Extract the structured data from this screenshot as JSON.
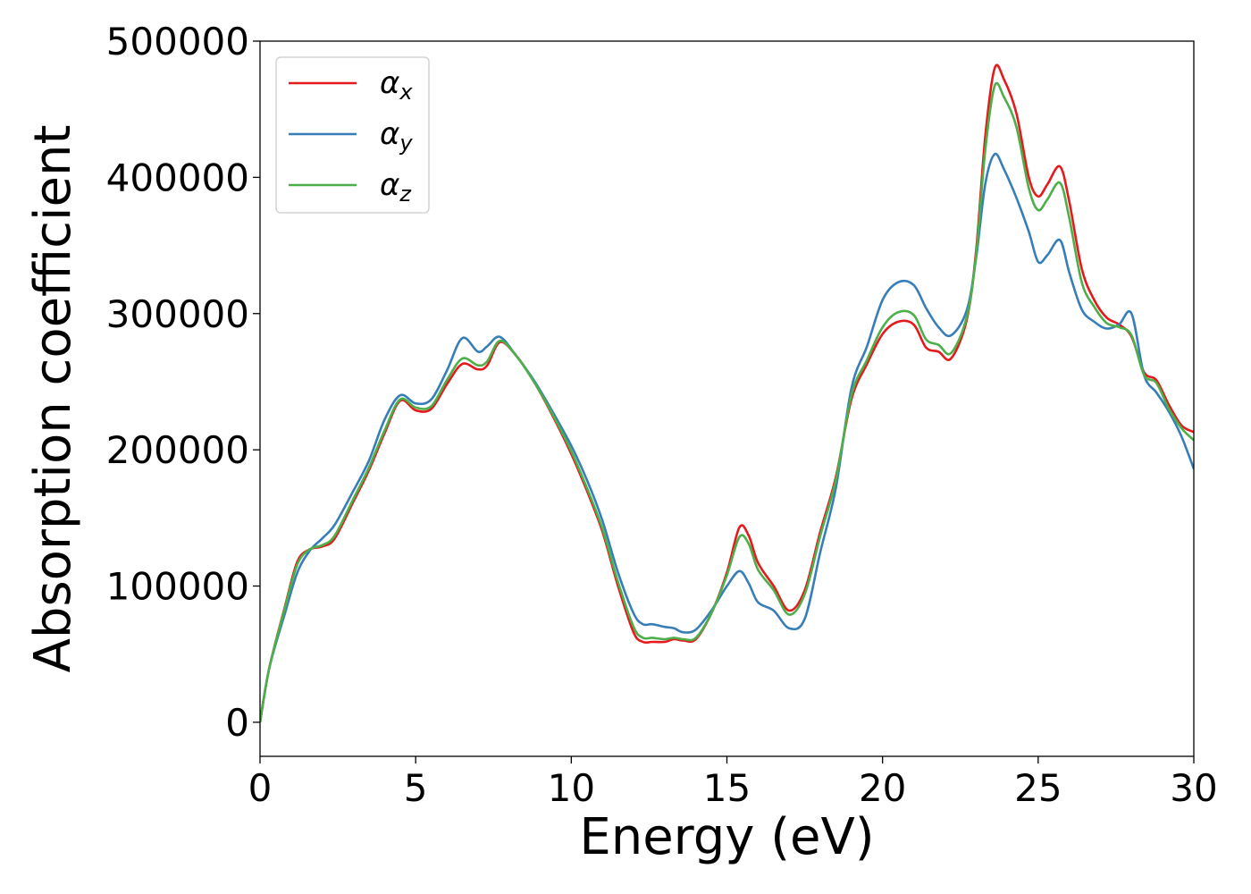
{
  "chart_data": {
    "type": "line",
    "title": "",
    "xlabel": "Energy (eV)",
    "ylabel": "Absorption coefficient",
    "xlim": [
      0,
      30
    ],
    "ylim": [
      -25000,
      500000
    ],
    "xticks": [
      "0",
      "5",
      "10",
      "15",
      "20",
      "25",
      "30"
    ],
    "yticks": [
      "0",
      "100000",
      "200000",
      "300000",
      "400000",
      "500000"
    ],
    "grid": false,
    "legend_position": "top-left",
    "series": [
      {
        "name": "α",
        "sub": "x",
        "color": "#e41a1c",
        "x": [
          0,
          0.3,
          0.8,
          1.2,
          1.6,
          2.0,
          2.4,
          3.0,
          3.5,
          4.0,
          4.5,
          5.0,
          5.5,
          6.0,
          6.5,
          7.0,
          7.3,
          7.7,
          8.2,
          8.8,
          9.4,
          10.0,
          10.5,
          11.0,
          11.5,
          12.0,
          12.3,
          12.6,
          13.0,
          13.3,
          13.6,
          14.0,
          14.5,
          15.0,
          15.4,
          15.7,
          16.0,
          16.5,
          17.0,
          17.5,
          18.0,
          18.5,
          19.0,
          19.5,
          20.0,
          20.5,
          21.0,
          21.4,
          21.8,
          22.2,
          22.7,
          23.0,
          23.3,
          23.6,
          23.9,
          24.3,
          24.7,
          25.0,
          25.3,
          25.7,
          26.0,
          26.4,
          26.8,
          27.2,
          27.6,
          28.0,
          28.4,
          28.8,
          29.2,
          29.6,
          30.0
        ],
        "values": [
          0,
          40000,
          85000,
          118000,
          127000,
          129000,
          135000,
          162000,
          185000,
          212000,
          236000,
          229000,
          230000,
          248000,
          263000,
          259000,
          262000,
          279000,
          270000,
          250000,
          225000,
          197000,
          170000,
          140000,
          100000,
          66000,
          59000,
          59000,
          59000,
          61000,
          60000,
          61000,
          80000,
          110000,
          143000,
          137000,
          117000,
          100000,
          82000,
          97000,
          140000,
          180000,
          237000,
          263000,
          285000,
          294000,
          292000,
          275000,
          272000,
          267000,
          295000,
          345000,
          430000,
          480000,
          472000,
          447000,
          400000,
          386000,
          395000,
          408000,
          382000,
          333000,
          310000,
          297000,
          292000,
          283000,
          257000,
          251000,
          233000,
          218000,
          213000
        ]
      },
      {
        "name": "α",
        "sub": "y",
        "color": "#377eb8",
        "x": [
          0,
          0.3,
          0.8,
          1.2,
          1.6,
          2.0,
          2.4,
          3.0,
          3.5,
          4.0,
          4.5,
          5.0,
          5.5,
          6.0,
          6.5,
          7.0,
          7.3,
          7.7,
          8.2,
          8.8,
          9.4,
          10.0,
          10.5,
          11.0,
          11.5,
          12.0,
          12.3,
          12.6,
          13.0,
          13.3,
          13.6,
          14.0,
          14.5,
          15.0,
          15.4,
          15.7,
          16.0,
          16.5,
          17.0,
          17.5,
          18.0,
          18.5,
          19.0,
          19.5,
          20.0,
          20.5,
          21.0,
          21.4,
          21.8,
          22.2,
          22.7,
          23.0,
          23.3,
          23.6,
          23.9,
          24.3,
          24.7,
          25.0,
          25.3,
          25.7,
          26.0,
          26.4,
          26.8,
          27.2,
          27.6,
          28.0,
          28.4,
          28.8,
          29.2,
          29.6,
          30.0
        ],
        "values": [
          0,
          40000,
          80000,
          110000,
          126000,
          135000,
          145000,
          170000,
          192000,
          222000,
          240000,
          234000,
          237000,
          258000,
          282000,
          272000,
          276000,
          283000,
          270000,
          251000,
          228000,
          203000,
          178000,
          148000,
          110000,
          80000,
          72000,
          72000,
          70000,
          69000,
          66000,
          68000,
          82000,
          100000,
          111000,
          102000,
          88000,
          82000,
          69000,
          76000,
          125000,
          172000,
          245000,
          276000,
          310000,
          323000,
          321000,
          304000,
          290000,
          284000,
          302000,
          340000,
          395000,
          417000,
          406000,
          385000,
          360000,
          338000,
          343000,
          354000,
          330000,
          303000,
          294000,
          289000,
          292000,
          300000,
          255000,
          242000,
          228000,
          210000,
          186000
        ]
      },
      {
        "name": "α",
        "sub": "z",
        "color": "#4daf4a",
        "x": [
          0,
          0.3,
          0.8,
          1.2,
          1.6,
          2.0,
          2.4,
          3.0,
          3.5,
          4.0,
          4.5,
          5.0,
          5.5,
          6.0,
          6.5,
          7.0,
          7.3,
          7.7,
          8.2,
          8.8,
          9.4,
          10.0,
          10.5,
          11.0,
          11.5,
          12.0,
          12.3,
          12.6,
          13.0,
          13.3,
          13.6,
          14.0,
          14.5,
          15.0,
          15.4,
          15.7,
          16.0,
          16.5,
          17.0,
          17.5,
          18.0,
          18.5,
          19.0,
          19.5,
          20.0,
          20.5,
          21.0,
          21.4,
          21.8,
          22.2,
          22.7,
          23.0,
          23.3,
          23.6,
          23.9,
          24.3,
          24.7,
          25.0,
          25.3,
          25.7,
          26.0,
          26.4,
          26.8,
          27.2,
          27.6,
          28.0,
          28.4,
          28.8,
          29.2,
          29.6,
          30.0
        ],
        "values": [
          0,
          40000,
          84000,
          116000,
          127000,
          130000,
          137000,
          164000,
          187000,
          214000,
          237000,
          231000,
          232000,
          251000,
          267000,
          262000,
          265000,
          280000,
          270000,
          250000,
          226000,
          199000,
          172000,
          142000,
          103000,
          70000,
          62000,
          62000,
          61000,
          62000,
          61000,
          62000,
          80000,
          108000,
          136000,
          131000,
          112000,
          97000,
          79000,
          94000,
          137000,
          178000,
          240000,
          266000,
          290000,
          301000,
          299000,
          281000,
          277000,
          271000,
          297000,
          342000,
          420000,
          467000,
          459000,
          437000,
          392000,
          376000,
          384000,
          396000,
          370000,
          323000,
          305000,
          293000,
          290000,
          284000,
          255000,
          249000,
          230000,
          216000,
          207000
        ]
      }
    ]
  }
}
